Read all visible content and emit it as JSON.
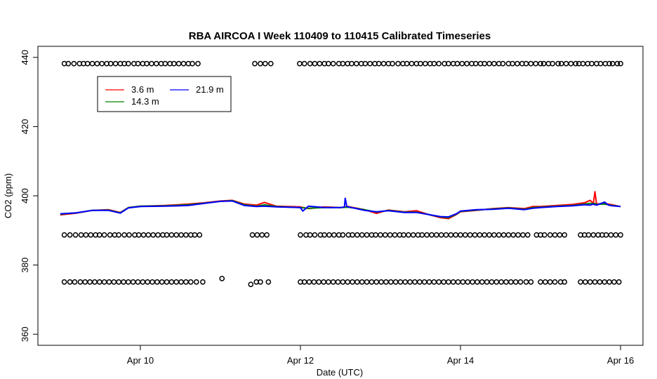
{
  "chart_data": {
    "type": "line",
    "title": "RBA AIRCOA I  Week 110409 to 110415  Calibrated Timeseries",
    "xlabel": "Date (UTC)",
    "ylabel": "CO2 (ppm)",
    "xlim_days": [
      9.0,
      16.0
    ],
    "ylim": [
      360,
      440
    ],
    "x_ticks": [
      {
        "value": 10,
        "label": "Apr 10"
      },
      {
        "value": 12,
        "label": "Apr 12"
      },
      {
        "value": 14,
        "label": "Apr 14"
      },
      {
        "value": 16,
        "label": "Apr 16"
      }
    ],
    "y_ticks": [
      {
        "value": 360,
        "label": "360"
      },
      {
        "value": 380,
        "label": "380"
      },
      {
        "value": 400,
        "label": "400"
      },
      {
        "value": 420,
        "label": "420"
      },
      {
        "value": 440,
        "label": "440"
      }
    ],
    "grid": false,
    "legend_position": "top-left",
    "legend": [
      {
        "label": "3.6 m",
        "color": "#ff0000"
      },
      {
        "label": "14.3 m",
        "color": "#008000"
      },
      {
        "label": "21.9 m",
        "color": "#0000ff"
      }
    ],
    "series": [
      {
        "name": "3.6 m",
        "color": "#ff0000",
        "points": [
          [
            9.0,
            394.5
          ],
          [
            9.2,
            395.0
          ],
          [
            9.4,
            395.8
          ],
          [
            9.6,
            396.0
          ],
          [
            9.75,
            395.2
          ],
          [
            9.85,
            396.6
          ],
          [
            10.0,
            397.0
          ],
          [
            10.3,
            397.2
          ],
          [
            10.6,
            397.6
          ],
          [
            10.8,
            398.0
          ],
          [
            11.0,
            398.5
          ],
          [
            11.15,
            398.7
          ],
          [
            11.3,
            397.6
          ],
          [
            11.45,
            397.3
          ],
          [
            11.55,
            398.1
          ],
          [
            11.7,
            397.0
          ],
          [
            12.0,
            396.8
          ],
          [
            12.1,
            396.3
          ],
          [
            12.3,
            396.8
          ],
          [
            12.5,
            396.6
          ],
          [
            12.6,
            396.9
          ],
          [
            12.8,
            396.0
          ],
          [
            12.95,
            394.9
          ],
          [
            13.1,
            395.9
          ],
          [
            13.3,
            395.4
          ],
          [
            13.45,
            395.7
          ],
          [
            13.6,
            394.6
          ],
          [
            13.75,
            393.7
          ],
          [
            13.85,
            393.4
          ],
          [
            13.95,
            394.6
          ],
          [
            14.0,
            395.4
          ],
          [
            14.2,
            395.8
          ],
          [
            14.4,
            396.3
          ],
          [
            14.6,
            396.6
          ],
          [
            14.8,
            396.3
          ],
          [
            14.9,
            396.9
          ],
          [
            15.0,
            396.9
          ],
          [
            15.2,
            397.2
          ],
          [
            15.4,
            397.5
          ],
          [
            15.55,
            398.0
          ],
          [
            15.62,
            398.7
          ],
          [
            15.66,
            397.8
          ],
          [
            15.68,
            401.2
          ],
          [
            15.7,
            397.6
          ],
          [
            15.8,
            397.8
          ],
          [
            15.9,
            397.4
          ],
          [
            16.0,
            396.9
          ]
        ]
      },
      {
        "name": "14.3 m",
        "color": "#008000",
        "points": [
          [
            9.0,
            394.7
          ],
          [
            9.2,
            395.1
          ],
          [
            9.4,
            395.8
          ],
          [
            9.6,
            395.9
          ],
          [
            9.75,
            395.1
          ],
          [
            9.85,
            396.6
          ],
          [
            10.0,
            397.0
          ],
          [
            10.3,
            397.1
          ],
          [
            10.6,
            397.4
          ],
          [
            10.8,
            397.9
          ],
          [
            11.0,
            398.4
          ],
          [
            11.15,
            398.6
          ],
          [
            11.3,
            397.4
          ],
          [
            11.45,
            397.0
          ],
          [
            11.55,
            397.4
          ],
          [
            11.7,
            396.9
          ],
          [
            12.0,
            396.6
          ],
          [
            12.1,
            396.4
          ],
          [
            12.3,
            396.6
          ],
          [
            12.5,
            396.6
          ],
          [
            12.6,
            396.7
          ],
          [
            12.8,
            396.0
          ],
          [
            12.95,
            395.3
          ],
          [
            13.1,
            395.8
          ],
          [
            13.3,
            395.3
          ],
          [
            13.45,
            395.3
          ],
          [
            13.6,
            394.6
          ],
          [
            13.75,
            393.9
          ],
          [
            13.85,
            393.7
          ],
          [
            13.95,
            394.7
          ],
          [
            14.0,
            395.5
          ],
          [
            14.2,
            395.9
          ],
          [
            14.4,
            396.2
          ],
          [
            14.6,
            396.5
          ],
          [
            14.8,
            396.1
          ],
          [
            14.9,
            396.6
          ],
          [
            15.0,
            396.7
          ],
          [
            15.2,
            397.0
          ],
          [
            15.4,
            397.2
          ],
          [
            15.55,
            397.6
          ],
          [
            15.62,
            397.8
          ],
          [
            15.66,
            397.7
          ],
          [
            15.68,
            397.8
          ],
          [
            15.7,
            397.5
          ],
          [
            15.8,
            397.6
          ],
          [
            15.9,
            397.2
          ],
          [
            16.0,
            396.9
          ]
        ]
      },
      {
        "name": "21.9 m",
        "color": "#0000ff",
        "points": [
          [
            9.0,
            394.8
          ],
          [
            9.2,
            395.1
          ],
          [
            9.4,
            395.8
          ],
          [
            9.6,
            395.8
          ],
          [
            9.75,
            395.0
          ],
          [
            9.85,
            396.5
          ],
          [
            10.0,
            396.9
          ],
          [
            10.3,
            397.0
          ],
          [
            10.6,
            397.2
          ],
          [
            10.8,
            397.8
          ],
          [
            11.0,
            398.4
          ],
          [
            11.15,
            398.5
          ],
          [
            11.3,
            397.2
          ],
          [
            11.45,
            396.9
          ],
          [
            11.55,
            397.0
          ],
          [
            11.7,
            396.8
          ],
          [
            12.0,
            396.6
          ],
          [
            12.03,
            395.6
          ],
          [
            12.1,
            397.0
          ],
          [
            12.3,
            396.6
          ],
          [
            12.5,
            396.6
          ],
          [
            12.55,
            396.8
          ],
          [
            12.56,
            399.3
          ],
          [
            12.58,
            396.9
          ],
          [
            12.8,
            395.8
          ],
          [
            12.95,
            395.4
          ],
          [
            13.1,
            395.7
          ],
          [
            13.3,
            395.2
          ],
          [
            13.45,
            395.2
          ],
          [
            13.6,
            394.6
          ],
          [
            13.75,
            394.0
          ],
          [
            13.85,
            393.9
          ],
          [
            13.95,
            394.8
          ],
          [
            14.0,
            395.6
          ],
          [
            14.2,
            396.0
          ],
          [
            14.4,
            396.1
          ],
          [
            14.6,
            396.4
          ],
          [
            14.8,
            396.0
          ],
          [
            14.9,
            396.4
          ],
          [
            15.0,
            396.6
          ],
          [
            15.2,
            396.9
          ],
          [
            15.4,
            397.1
          ],
          [
            15.55,
            397.4
          ],
          [
            15.62,
            397.3
          ],
          [
            15.66,
            397.6
          ],
          [
            15.68,
            397.4
          ],
          [
            15.7,
            397.3
          ],
          [
            15.8,
            398.2
          ],
          [
            15.85,
            397.3
          ],
          [
            15.9,
            397.1
          ],
          [
            16.0,
            396.9
          ]
        ]
      }
    ],
    "marker_rows": [
      {
        "y": 438.2,
        "x": [
          9.05,
          9.1,
          9.17,
          9.24,
          9.29,
          9.34,
          9.4,
          9.46,
          9.52,
          9.58,
          9.63,
          9.69,
          9.75,
          9.8,
          9.85,
          9.92,
          9.97,
          10.03,
          10.08,
          10.14,
          10.2,
          10.26,
          10.31,
          10.37,
          10.42,
          10.48,
          10.54,
          10.6,
          10.65,
          10.72,
          11.43,
          11.5,
          11.56,
          11.63,
          11.99,
          12.05,
          12.12,
          12.18,
          12.24,
          12.3,
          12.35,
          12.41,
          12.48,
          12.53,
          12.59,
          12.64,
          12.7,
          12.76,
          12.81,
          12.87,
          12.93,
          12.98,
          13.04,
          13.1,
          13.15,
          13.22,
          13.28,
          13.33,
          13.39,
          13.45,
          13.5,
          13.56,
          13.62,
          13.67,
          13.73,
          13.8,
          13.85,
          13.91,
          13.96,
          14.02,
          14.08,
          14.14,
          14.19,
          14.25,
          14.3,
          14.36,
          14.42,
          14.48,
          14.53,
          14.6,
          14.65,
          14.71,
          14.77,
          14.82,
          14.88,
          14.94,
          15.0,
          15.04,
          15.1,
          15.15,
          15.22,
          15.26,
          15.32,
          15.38,
          15.44,
          15.48,
          15.53,
          15.59,
          15.64,
          15.7,
          15.75,
          15.81,
          15.86,
          15.9,
          15.96,
          16.0
        ]
      },
      {
        "y": 388.7,
        "x": [
          9.05,
          9.12,
          9.19,
          9.26,
          9.32,
          9.38,
          9.44,
          9.49,
          9.55,
          9.62,
          9.68,
          9.73,
          9.8,
          9.86,
          9.93,
          9.98,
          10.04,
          10.1,
          10.16,
          10.22,
          10.28,
          10.33,
          10.39,
          10.45,
          10.51,
          10.57,
          10.63,
          10.68,
          10.74,
          11.4,
          11.46,
          11.52,
          11.58,
          12.0,
          12.07,
          12.12,
          12.18,
          12.25,
          12.3,
          12.36,
          12.42,
          12.48,
          12.53,
          12.6,
          12.65,
          12.71,
          12.77,
          12.83,
          12.89,
          12.94,
          13.0,
          13.06,
          13.12,
          13.18,
          13.24,
          13.29,
          13.35,
          13.41,
          13.47,
          13.52,
          13.58,
          13.64,
          13.7,
          13.76,
          13.82,
          13.88,
          13.94,
          14.0,
          14.06,
          14.12,
          14.18,
          14.24,
          14.3,
          14.36,
          14.42,
          14.48,
          14.54,
          14.6,
          14.66,
          14.72,
          14.78,
          14.84,
          14.95,
          15.0,
          15.05,
          15.12,
          15.18,
          15.24,
          15.3,
          15.5,
          15.55,
          15.6,
          15.66,
          15.72,
          15.77,
          15.82,
          15.88,
          15.94,
          16.0
        ]
      },
      {
        "y": 375.1,
        "x": [
          9.05,
          9.12,
          9.18,
          9.25,
          9.31,
          9.37,
          9.43,
          9.49,
          9.55,
          9.61,
          9.67,
          9.73,
          9.79,
          9.85,
          9.91,
          9.97,
          10.03,
          10.09,
          10.15,
          10.21,
          10.27,
          10.33,
          10.39,
          10.45,
          10.51,
          10.57,
          10.63,
          10.7,
          10.78
        ]
      },
      {
        "y": 376.1,
        "x": [
          11.02
        ]
      },
      {
        "y": 374.4,
        "x": [
          11.38
        ]
      },
      {
        "y": 375.1,
        "x": [
          11.45,
          11.5,
          11.6
        ]
      },
      {
        "y": 375.1,
        "x": [
          12.0,
          12.05,
          12.11,
          12.17,
          12.23,
          12.29,
          12.35,
          12.41,
          12.47,
          12.53,
          12.59,
          12.65,
          12.71,
          12.77,
          12.83,
          12.89,
          12.95,
          13.01,
          13.07,
          13.13,
          13.19,
          13.25,
          13.31,
          13.37,
          13.43,
          13.49,
          13.55,
          13.61,
          13.67,
          13.73,
          13.79,
          13.85,
          13.91,
          13.97,
          14.03,
          14.09,
          14.15,
          14.21,
          14.27,
          14.33,
          14.39,
          14.45,
          14.51,
          14.57,
          14.63,
          14.69,
          14.75,
          14.82,
          14.88,
          15.0,
          15.06,
          15.12,
          15.18,
          15.25,
          15.3,
          15.5,
          15.56,
          15.62,
          15.68,
          15.74,
          15.8,
          15.86,
          15.92,
          15.98
        ]
      }
    ]
  }
}
